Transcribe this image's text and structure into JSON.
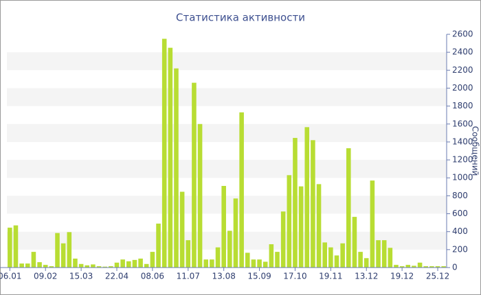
{
  "chart_data": {
    "type": "bar",
    "title": "Статистика активности",
    "y_axis_label": "Сообщений",
    "categories": [
      "06.01",
      null,
      null,
      null,
      null,
      null,
      "09.02",
      null,
      null,
      null,
      null,
      null,
      "15.03",
      null,
      null,
      null,
      null,
      null,
      "22.04",
      null,
      null,
      null,
      null,
      null,
      "08.06",
      null,
      null,
      null,
      null,
      null,
      "11.07",
      null,
      null,
      null,
      null,
      null,
      "13.08",
      null,
      null,
      null,
      null,
      null,
      "15.09",
      null,
      null,
      null,
      null,
      null,
      "17.10",
      null,
      null,
      null,
      null,
      null,
      "19.11",
      null,
      null,
      null,
      null,
      null,
      "13.12",
      null,
      null,
      null,
      null,
      null,
      "19.12",
      null,
      null,
      null,
      null,
      null,
      "25.12",
      null
    ],
    "values": [
      445,
      470,
      45,
      45,
      175,
      60,
      30,
      15,
      385,
      270,
      395,
      100,
      40,
      25,
      35,
      15,
      10,
      15,
      55,
      90,
      70,
      85,
      100,
      40,
      175,
      490,
      2550,
      2450,
      2220,
      845,
      305,
      2060,
      1600,
      90,
      90,
      225,
      910,
      410,
      770,
      1730,
      165,
      90,
      90,
      65,
      260,
      175,
      625,
      1030,
      1445,
      905,
      1565,
      1420,
      930,
      280,
      225,
      135,
      270,
      1330,
      565,
      175,
      105,
      970,
      305,
      305,
      220,
      30,
      15,
      30,
      20,
      55,
      15,
      15,
      15,
      15
    ],
    "color": "#b8dd33",
    "ylim": [
      0,
      2600
    ],
    "yticks": [
      0,
      200,
      400,
      600,
      800,
      1000,
      1200,
      1400,
      1600,
      1800,
      2000,
      2200,
      2400,
      2600
    ],
    "grid": true
  }
}
